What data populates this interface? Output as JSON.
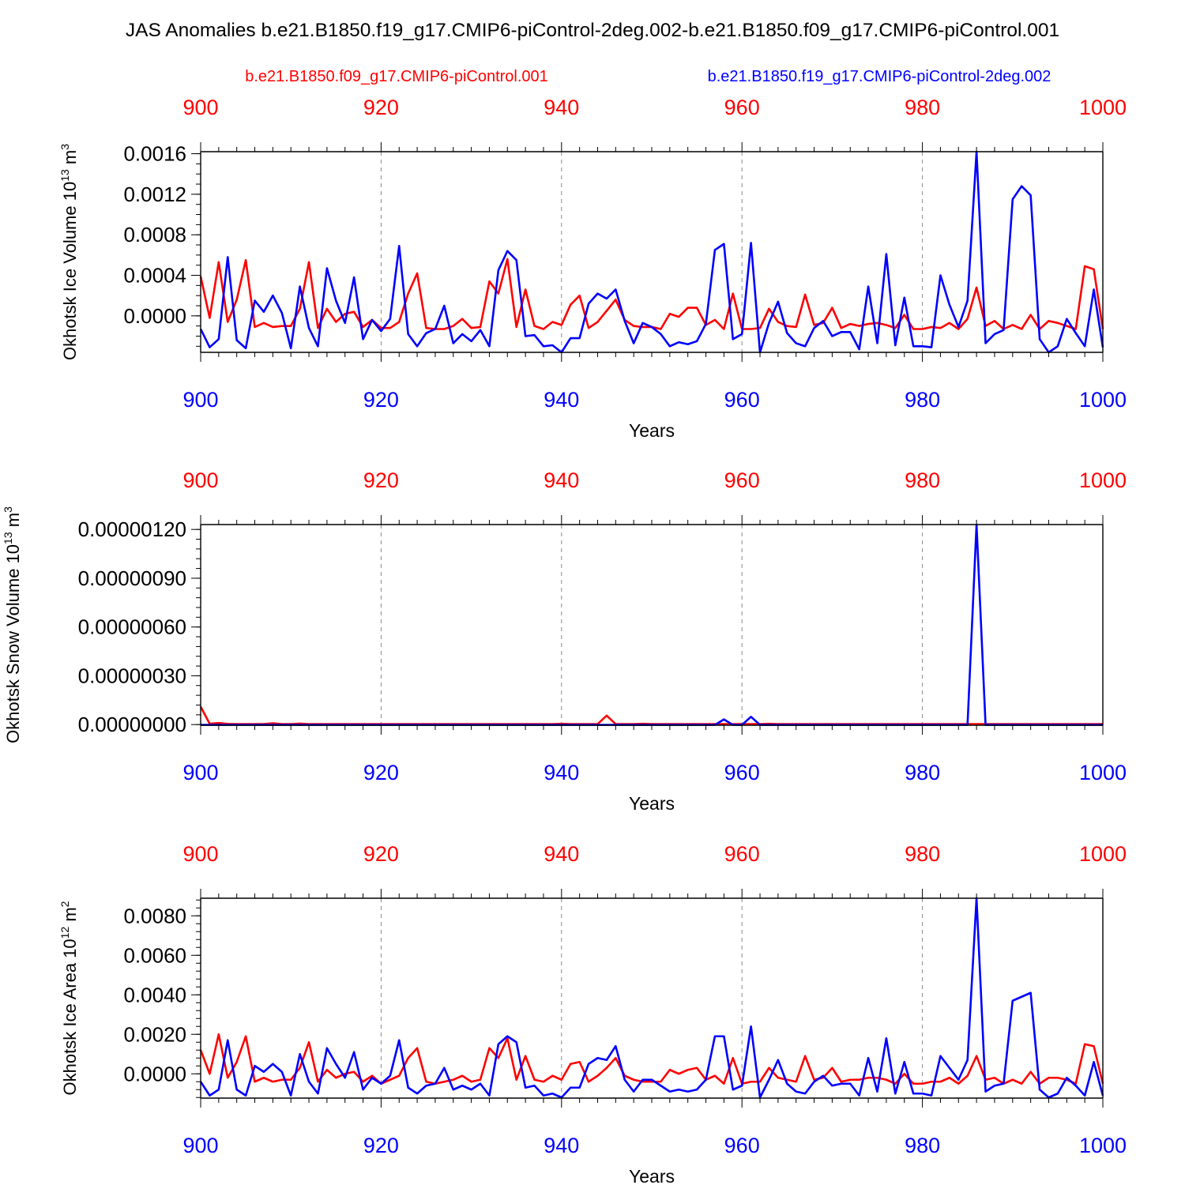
{
  "title": "JAS Anomalies b.e21.B1850.f19_g17.CMIP6-piControl-2deg.002-b.e21.B1850.f09_g17.CMIP6-piControl.001",
  "legend": {
    "red_label": "b.e21.B1850.f09_g17.CMIP6-piControl.001",
    "blue_label": "b.e21.B1850.f19_g17.CMIP6-piControl-2deg.002"
  },
  "colors": {
    "red": "#ff0000",
    "blue": "#0000ff",
    "axis": "#000000",
    "grid": "#888888"
  },
  "chart_data": [
    {
      "type": "line",
      "ylabel": "Okhotsk Ice Volume 10",
      "ylabel_exp": "13",
      "ylabel_unit": " m",
      "ylabel_unit_exp": "3",
      "xlabel": "Years",
      "xlim": [
        900,
        1000
      ],
      "ylim": [
        -0.00036,
        0.00162
      ],
      "yticks": [
        0.0,
        0.0004,
        0.0008,
        0.0012,
        0.0016
      ],
      "ytick_labels": [
        "0.0000",
        "0.0004",
        "0.0008",
        "0.0012",
        "0.0016"
      ],
      "ytick_minor": 0.0001,
      "xticks": [
        900,
        920,
        940,
        960,
        980,
        1000
      ],
      "xtick_labels": [
        "900",
        "920",
        "940",
        "960",
        "980",
        "1000"
      ],
      "x_start": 900,
      "series": [
        {
          "name": "b.e21.B1850.f09_g17.CMIP6-piControl.001",
          "color": "red",
          "values": [
            0.00039,
            -2e-05,
            0.00053,
            -6e-05,
            0.00016,
            0.00055,
            -0.00011,
            -7e-05,
            -0.00011,
            -0.0001,
            -0.0001,
            7e-05,
            0.00053,
            -0.00012,
            7e-05,
            -6e-05,
            2e-05,
            4e-05,
            -0.00011,
            -4e-05,
            -0.00012,
            -0.00012,
            -6e-05,
            0.00022,
            0.00042,
            -0.00012,
            -0.00013,
            -0.00013,
            -0.0001,
            -3e-05,
            -0.00012,
            -0.00011,
            0.00034,
            0.00022,
            0.00056,
            -0.00011,
            0.00026,
            -0.0001,
            -0.00013,
            -6e-05,
            -9e-05,
            0.00011,
            0.0002,
            -0.00012,
            -6e-05,
            5e-05,
            0.00016,
            -4e-05,
            -0.0001,
            -0.00011,
            -0.00011,
            -0.00013,
            2e-05,
            -1e-05,
            8e-05,
            8e-05,
            -9e-05,
            -4e-05,
            -0.00013,
            0.00022,
            -0.00013,
            -0.00013,
            -0.00012,
            7e-05,
            -6e-05,
            -0.0001,
            -0.00011,
            0.00021,
            -9e-05,
            -7e-05,
            8e-05,
            -0.00012,
            -8e-05,
            -0.0001,
            -8e-05,
            -7e-05,
            -9e-05,
            -0.00012,
            1e-05,
            -0.00013,
            -0.00013,
            -0.00011,
            -0.00012,
            -7e-05,
            -0.00013,
            -3e-05,
            0.00028,
            -0.0001,
            -5e-05,
            -0.00013,
            -9e-05,
            -0.00013,
            1e-05,
            -0.00013,
            -5e-05,
            -7e-05,
            -0.0001,
            -0.00013,
            0.00049,
            0.00046,
            -0.00013
          ]
        },
        {
          "name": "b.e21.B1850.f19_g17.CMIP6-piControl-2deg.002",
          "color": "blue",
          "values": [
            -0.00013,
            -0.00031,
            -0.00023,
            0.00058,
            -0.00024,
            -0.00032,
            0.00015,
            4e-05,
            0.0002,
            3e-05,
            -0.00032,
            0.00029,
            -0.00012,
            -0.0003,
            0.00047,
            0.00015,
            -7e-05,
            0.00038,
            -0.00023,
            -4e-05,
            -0.00015,
            -3e-05,
            0.00069,
            -0.00018,
            -0.0003,
            -0.00017,
            -0.00013,
            0.0001,
            -0.00027,
            -0.00018,
            -0.00025,
            -0.00014,
            -0.0003,
            0.00045,
            0.00064,
            0.00055,
            -0.0002,
            -0.00019,
            -0.0003,
            -0.00029,
            -0.00036,
            -0.00022,
            -0.00022,
            0.00012,
            0.00022,
            0.00017,
            0.00026,
            -5e-05,
            -0.00027,
            -7e-05,
            -0.00011,
            -0.00018,
            -0.0003,
            -0.00026,
            -0.00028,
            -0.00025,
            -8e-05,
            0.00065,
            0.00071,
            -0.00023,
            -0.00018,
            0.00072,
            -0.00036,
            -7e-05,
            0.00014,
            -0.00017,
            -0.00027,
            -0.0003,
            -0.00012,
            -5e-05,
            -0.0002,
            -0.00016,
            -0.00016,
            -0.00033,
            0.00029,
            -0.00027,
            0.00061,
            -0.00029,
            0.00018,
            -0.0003,
            -0.0003,
            -0.00031,
            0.0004,
            0.00011,
            -0.00011,
            0.00015,
            0.00162,
            -0.00027,
            -0.00018,
            -0.00014,
            0.00115,
            0.00128,
            0.00119,
            -0.00023,
            -0.00036,
            -0.0003,
            -3e-05,
            -0.00017,
            -0.0003,
            0.00026,
            -0.00031
          ]
        }
      ]
    },
    {
      "type": "line",
      "ylabel": "Okhotsk Snow Volume 10",
      "ylabel_exp": "13",
      "ylabel_unit": " m",
      "ylabel_unit_exp": "3",
      "xlabel": "Years",
      "xlim": [
        900,
        1000
      ],
      "ylim": [
        -4e-09,
        1.23e-06
      ],
      "yticks": [
        0.0,
        3e-07,
        6e-07,
        9e-07,
        1.2e-06
      ],
      "ytick_labels": [
        "0.00000000",
        "0.00000030",
        "0.00000060",
        "0.00000090",
        "0.00000120"
      ],
      "ytick_minor": 6e-08,
      "xticks": [
        900,
        920,
        940,
        960,
        980,
        1000
      ],
      "xtick_labels": [
        "900",
        "920",
        "940",
        "960",
        "980",
        "1000"
      ],
      "x_start": 900,
      "series": [
        {
          "name": "b.e21.B1850.f09_g17.CMIP6-piControl.001",
          "color": "red",
          "values": [
            1.1e-07,
            5e-09,
            1e-08,
            4e-09,
            3e-09,
            3e-09,
            3e-09,
            3e-09,
            8e-09,
            3e-09,
            3e-09,
            6e-09,
            3e-09,
            3e-09,
            3e-09,
            3e-09,
            3e-09,
            3e-09,
            3e-09,
            3e-09,
            3e-09,
            3e-09,
            3e-09,
            3e-09,
            3e-09,
            3e-09,
            3e-09,
            3e-09,
            3e-09,
            3e-09,
            3e-09,
            3e-09,
            3e-09,
            3e-09,
            3e-09,
            3e-09,
            3e-09,
            3e-09,
            3e-09,
            3e-09,
            5e-09,
            3e-09,
            3e-09,
            3e-09,
            3e-09,
            5.5e-08,
            3e-09,
            3e-09,
            3e-09,
            5e-09,
            3e-09,
            3e-09,
            3e-09,
            3e-09,
            3e-09,
            3e-09,
            3e-09,
            3e-09,
            3e-09,
            3e-09,
            3e-09,
            3e-09,
            3e-09,
            5e-09,
            3e-09,
            3e-09,
            3e-09,
            3e-09,
            3e-09,
            3e-09,
            3e-09,
            3e-09,
            3e-09,
            3e-09,
            3e-09,
            3e-09,
            3e-09,
            3e-09,
            3e-09,
            3e-09,
            3e-09,
            3e-09,
            3e-09,
            3e-09,
            3e-09,
            3e-09,
            3e-09,
            3e-09,
            3e-09,
            3e-09,
            3e-09,
            3e-09,
            3e-09,
            3e-09,
            3e-09,
            3e-09,
            3e-09,
            3e-09,
            3e-09,
            3e-09,
            3e-09
          ]
        },
        {
          "name": "b.e21.B1850.f19_g17.CMIP6-piControl-2deg.002",
          "color": "blue",
          "values": [
            -2e-09,
            -2e-09,
            -2e-09,
            -2e-09,
            -2e-09,
            -2e-09,
            -2e-09,
            -2e-09,
            -2e-09,
            -2e-09,
            -2e-09,
            -2e-09,
            -2e-09,
            -2e-09,
            -2e-09,
            -2e-09,
            -2e-09,
            -2e-09,
            -2e-09,
            -2e-09,
            -2e-09,
            -2e-09,
            -2e-09,
            -2e-09,
            -2e-09,
            -2e-09,
            -2e-09,
            -2e-09,
            -2e-09,
            -2e-09,
            -2e-09,
            -2e-09,
            -2e-09,
            -2e-09,
            -2e-09,
            -2e-09,
            -2e-09,
            -2e-09,
            -2e-09,
            -2e-09,
            -2e-09,
            -2e-09,
            -2e-09,
            -2e-09,
            -2e-09,
            -2e-09,
            -2e-09,
            -2e-09,
            -2e-09,
            -2e-09,
            -2e-09,
            -2e-09,
            -2e-09,
            -2e-09,
            -2e-09,
            -2e-09,
            -2e-09,
            -2e-09,
            3.2e-08,
            -2e-09,
            -2e-09,
            4.8e-08,
            -2e-09,
            -2e-09,
            -2e-09,
            -2e-09,
            -2e-09,
            -2e-09,
            -2e-09,
            -2e-09,
            -2e-09,
            -2e-09,
            -2e-09,
            -2e-09,
            -2e-09,
            -2e-09,
            -2e-09,
            -2e-09,
            -2e-09,
            -2e-09,
            -2e-09,
            -2e-09,
            -2e-09,
            -2e-09,
            -2e-09,
            -2e-09,
            1.23e-06,
            -2e-09,
            -2e-09,
            -2e-09,
            -2e-09,
            -2e-09,
            -2e-09,
            -2e-09,
            -2e-09,
            -2e-09,
            -2e-09,
            -2e-09,
            -2e-09,
            -2e-09,
            -2e-09
          ]
        }
      ]
    },
    {
      "type": "line",
      "ylabel": "Okhotsk Ice Area 10",
      "ylabel_exp": "12",
      "ylabel_unit": " m",
      "ylabel_unit_exp": "2",
      "xlabel": "Years",
      "xlim": [
        900,
        1000
      ],
      "ylim": [
        -0.00123,
        0.00889
      ],
      "yticks": [
        0.0,
        0.002,
        0.004,
        0.006,
        0.008
      ],
      "ytick_labels": [
        "0.0000",
        "0.0020",
        "0.0040",
        "0.0060",
        "0.0080"
      ],
      "ytick_minor": 0.0004,
      "xticks": [
        900,
        920,
        940,
        960,
        980,
        1000
      ],
      "xtick_labels": [
        "900",
        "920",
        "940",
        "960",
        "980",
        "1000"
      ],
      "x_start": 900,
      "series": [
        {
          "name": "b.e21.B1850.f09_g17.CMIP6-piControl.001",
          "color": "red",
          "values": [
            0.0012,
            0.0,
            0.002,
            -0.0002,
            0.0006,
            0.0019,
            -0.0004,
            -0.0002,
            -0.0004,
            -0.0003,
            -0.0003,
            0.0003,
            0.0016,
            -0.0004,
            0.0002,
            -0.0002,
            0.0,
            0.0001,
            -0.0004,
            -0.0001,
            -0.0005,
            -0.0003,
            -0.0001,
            0.0008,
            0.0013,
            -0.0004,
            -0.0005,
            -0.0004,
            -0.0003,
            -0.0001,
            -0.0004,
            -0.0003,
            0.0013,
            0.0008,
            0.0018,
            -0.0003,
            0.0009,
            -0.0003,
            -0.0004,
            -0.0001,
            -0.0003,
            0.0005,
            0.0006,
            -0.0004,
            -0.0001,
            0.0003,
            0.0008,
            -0.0001,
            -0.0003,
            -0.0004,
            -0.0004,
            -0.0004,
            0.0002,
            0.0,
            0.0002,
            0.0003,
            -0.0003,
            -0.0001,
            -0.0005,
            0.0008,
            -0.0005,
            -0.0004,
            -0.0004,
            0.0003,
            -0.0002,
            -0.0003,
            -0.0004,
            0.0009,
            -0.0003,
            -0.0002,
            0.0003,
            -0.0004,
            -0.0003,
            -0.0003,
            -0.0002,
            -0.0002,
            -0.0003,
            -0.0005,
            0.0,
            -0.0005,
            -0.0005,
            -0.0004,
            -0.0004,
            -0.0002,
            -0.0005,
            -0.0001,
            0.0009,
            -0.0003,
            -0.0002,
            -0.0005,
            -0.0003,
            -0.0005,
            0.0001,
            -0.0005,
            -0.0002,
            -0.0002,
            -0.0003,
            -0.0005,
            0.0015,
            0.0014,
            -0.0005
          ]
        },
        {
          "name": "b.e21.B1850.f19_g17.CMIP6-piControl-2deg.002",
          "color": "blue",
          "values": [
            -0.0004,
            -0.0011,
            -0.0008,
            0.0017,
            -0.0008,
            -0.0011,
            0.0004,
            0.0001,
            0.0005,
            0.0001,
            -0.0011,
            0.001,
            -0.0004,
            -0.001,
            0.0013,
            0.0005,
            -0.0002,
            0.0011,
            -0.0008,
            -0.0002,
            -0.0005,
            -0.0001,
            0.0017,
            -0.0007,
            -0.001,
            -0.0006,
            -0.0005,
            0.0003,
            -0.0008,
            -0.0006,
            -0.0008,
            -0.0005,
            -0.0011,
            0.0015,
            0.0019,
            0.0016,
            -0.0007,
            -0.0006,
            -0.0011,
            -0.001,
            -0.0012,
            -0.0007,
            -0.0007,
            0.0005,
            0.0008,
            0.0007,
            0.0014,
            -0.0003,
            -0.0009,
            -0.0003,
            -0.0003,
            -0.0006,
            -0.0009,
            -0.0008,
            -0.0009,
            -0.0008,
            -0.0003,
            0.0019,
            0.0019,
            -0.0008,
            -0.0006,
            0.0024,
            -0.0012,
            -0.0003,
            0.0007,
            -0.0005,
            -0.0009,
            -0.001,
            -0.0004,
            -0.0001,
            -0.0006,
            -0.0005,
            -0.0005,
            -0.0011,
            0.0008,
            -0.0009,
            0.0018,
            -0.001,
            0.0006,
            -0.001,
            -0.001,
            -0.0011,
            0.0009,
            0.0003,
            -0.0003,
            0.0007,
            0.0089,
            -0.0009,
            -0.0006,
            -0.0005,
            0.0037,
            0.0039,
            0.0041,
            -0.0008,
            -0.0012,
            -0.001,
            -0.0002,
            -0.0006,
            -0.0011,
            0.0006,
            -0.0011
          ]
        }
      ]
    }
  ]
}
